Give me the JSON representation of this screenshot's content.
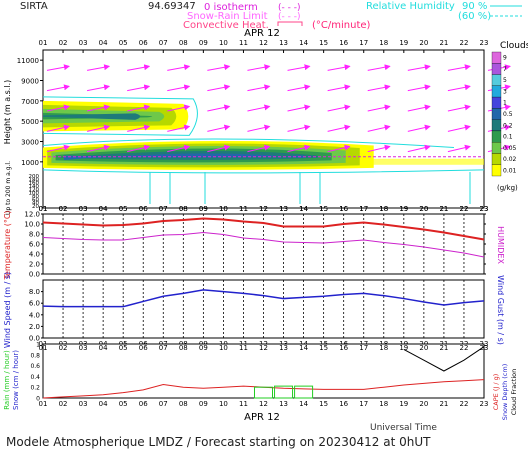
{
  "header": {
    "station": "SIRTA",
    "coords": "94.69347",
    "legend_isotherm": "0 isotherm",
    "legend_isotherm_sample": "(- - -)",
    "legend_snowrain": "Snow-Rain Limit",
    "legend_snowrain_sample": "(- - -)",
    "legend_convective": "Convective Heat.",
    "legend_convective_unit": "(°C/minute)",
    "legend_rh": "Relative Humidity",
    "legend_rh_90": "90 %",
    "legend_rh_60": "(60 %)"
  },
  "footer": {
    "title": "Modele Atmospherique LMDZ / Forecast starting on 20230412 at 0hUT",
    "xlabel": "Universal Time",
    "date_label": "APR 12"
  },
  "colors": {
    "wind_arrow": "#ff22ff",
    "rh_line": "#22dddd",
    "temperature": "#dd2222",
    "humidex": "#cc22cc",
    "wind_speed": "#2222cc",
    "rain": "#dd2222",
    "snow": "#22cc22",
    "cloud_scale": [
      "#ffff00",
      "#b7d800",
      "#6ec84a",
      "#2f9a4e",
      "#1e7a7a",
      "#2266aa",
      "#4444dd",
      "#22aadd",
      "#55ccdd",
      "#aa55dd",
      "#dd66dd",
      "#ee88ee"
    ]
  },
  "chart_data": [
    {
      "type": "heatmap",
      "title": "Clouds",
      "ylabel": "Height (m a.s.l.)",
      "ylabel_low": "Up to 200 m a.g.l.",
      "x": [
        "01",
        "02",
        "03",
        "04",
        "05",
        "06",
        "07",
        "08",
        "09",
        "10",
        "11",
        "12",
        "13",
        "14",
        "15",
        "16",
        "17",
        "18",
        "19",
        "20",
        "21",
        "22",
        "23"
      ],
      "y_ticks": [
        1000,
        3000,
        5000,
        7000,
        9000,
        11000
      ],
      "y_ticks_low": [
        200,
        180,
        160,
        140,
        120,
        100,
        80,
        60,
        40,
        20
      ],
      "colorbar_ticks": [
        "9",
        "7",
        "5",
        "3",
        "1",
        "0.5",
        "0.2",
        "0.1",
        "0.05",
        "0.02",
        "0.01"
      ],
      "colorbar_unit": "(g/kg)",
      "layers": [
        {
          "name": "upper",
          "height_range": [
            4000,
            7000
          ],
          "x_range": [
            "01",
            "07"
          ]
        },
        {
          "name": "lower",
          "height_range": [
            800,
            3000
          ],
          "x_range": [
            "01",
            "17"
          ]
        }
      ],
      "date_label": "APR 12"
    },
    {
      "type": "line",
      "ylabel": "Temperature (°C)",
      "ylabel2": "HUMIDEX",
      "ylim": [
        0,
        12
      ],
      "y_ticks": [
        0,
        2,
        4,
        6,
        8,
        10,
        12
      ],
      "x": [
        "01",
        "02",
        "03",
        "04",
        "05",
        "06",
        "07",
        "08",
        "09",
        "10",
        "11",
        "12",
        "13",
        "14",
        "15",
        "16",
        "17",
        "18",
        "19",
        "20",
        "21",
        "22",
        "23"
      ],
      "series": [
        {
          "name": "Temperature",
          "values": [
            10.3,
            10.1,
            9.9,
            9.7,
            9.8,
            10.1,
            10.6,
            10.8,
            11.1,
            10.9,
            10.5,
            10.2,
            9.5,
            9.5,
            9.5,
            10.0,
            10.3,
            9.9,
            9.4,
            8.9,
            8.3,
            7.6,
            6.9
          ]
        },
        {
          "name": "HUMIDEX",
          "values": [
            7.3,
            7.1,
            6.9,
            6.8,
            6.8,
            7.3,
            7.8,
            7.9,
            8.3,
            7.9,
            7.2,
            6.9,
            6.4,
            6.3,
            6.2,
            6.5,
            6.8,
            6.3,
            5.9,
            5.4,
            4.8,
            4.2,
            3.4
          ]
        }
      ]
    },
    {
      "type": "line",
      "ylabel": "Wind Speed (m / s)",
      "ylabel2": "Wind Gust (m / s)",
      "ylim": [
        0,
        10
      ],
      "y_ticks": [
        0,
        2,
        4,
        6,
        8
      ],
      "x": [
        "01",
        "02",
        "03",
        "04",
        "05",
        "06",
        "07",
        "08",
        "09",
        "10",
        "11",
        "12",
        "13",
        "14",
        "15",
        "16",
        "17",
        "18",
        "19",
        "20",
        "21",
        "22",
        "23"
      ],
      "series": [
        {
          "name": "Wind Speed",
          "values": [
            5.5,
            5.4,
            5.4,
            5.4,
            5.4,
            6.3,
            7.2,
            7.7,
            8.3,
            8.0,
            7.7,
            7.3,
            6.8,
            7.0,
            7.2,
            7.5,
            7.7,
            7.3,
            6.8,
            6.2,
            5.7,
            6.1,
            6.4
          ]
        }
      ]
    },
    {
      "type": "line",
      "ylabel": "Rain (mm / hour)",
      "ylabel_b": "Snow (cm / hour)",
      "ylabel2": "CAPE (J / g)",
      "ylabel2_b": "Snow Depth (cm)",
      "ylabel2_c": "Cloud Fraction",
      "ylim": [
        0,
        1
      ],
      "y_ticks": [
        "0",
        "0.2",
        "0.4",
        "0.6",
        "0.8",
        "1"
      ],
      "x": [
        "01",
        "02",
        "03",
        "04",
        "05",
        "06",
        "07",
        "08",
        "09",
        "10",
        "11",
        "12",
        "13",
        "14",
        "15",
        "16",
        "17",
        "18",
        "19",
        "20",
        "21",
        "22",
        "23"
      ],
      "series": [
        {
          "name": "Rain",
          "values": [
            0.0,
            0.02,
            0.04,
            0.06,
            0.1,
            0.15,
            0.25,
            0.2,
            0.18,
            0.2,
            0.22,
            0.2,
            0.18,
            0.17,
            0.16,
            0.16,
            0.16,
            0.2,
            0.24,
            0.27,
            0.3,
            0.32,
            0.34
          ]
        },
        {
          "name": "Snow",
          "values": [
            0.0,
            0.0,
            0.0,
            0.0,
            0.0,
            0.0,
            0.0,
            0.0,
            0.0,
            0.0,
            0.0,
            0.2,
            0.22,
            0.22,
            0.0,
            0.0,
            0.0,
            0.0,
            0.0,
            0.0,
            0.0,
            0.0,
            0.0
          ]
        },
        {
          "name": "Cloud Fraction",
          "values": [
            null,
            null,
            null,
            null,
            null,
            null,
            null,
            null,
            null,
            null,
            null,
            null,
            null,
            null,
            null,
            null,
            null,
            null,
            0.9,
            0.7,
            0.5,
            0.7,
            0.95
          ]
        }
      ]
    }
  ]
}
